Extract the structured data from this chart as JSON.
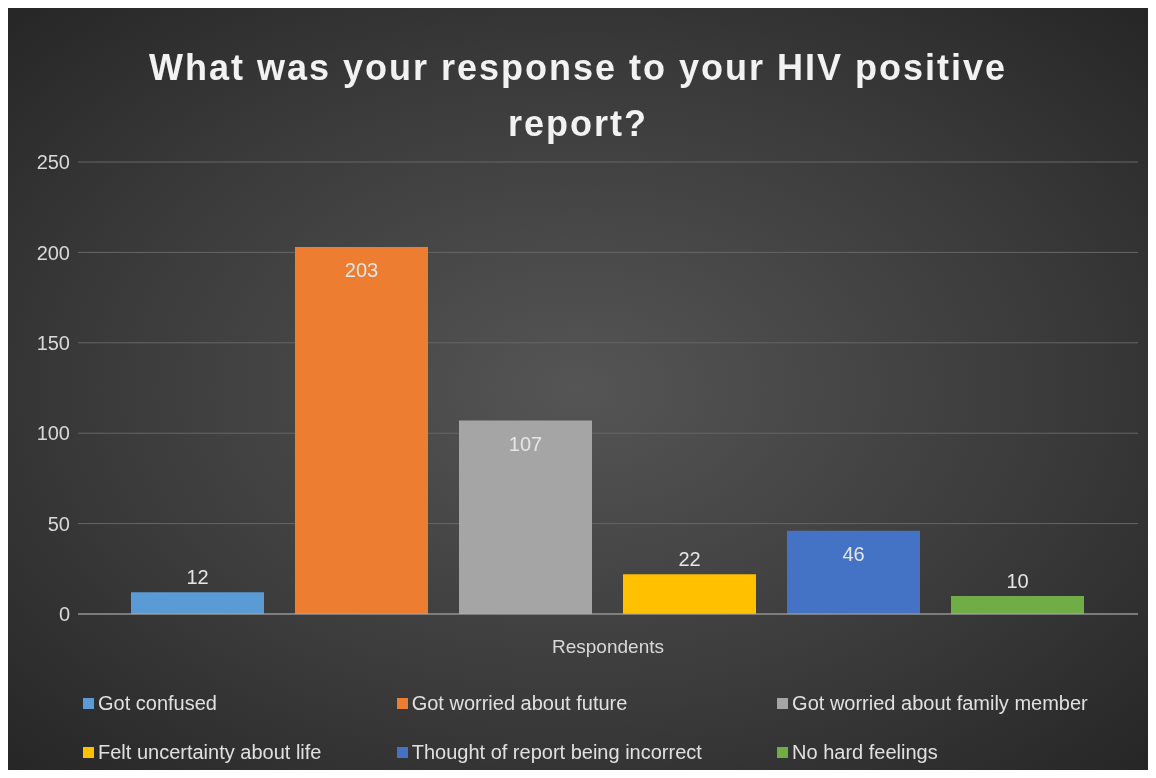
{
  "chart_data": {
    "type": "bar",
    "title": "What was your response to your HIV positive report?",
    "categories": [
      "Respondents"
    ],
    "series": [
      {
        "name": "Got confused",
        "color": "#5b9bd5",
        "values": [
          12
        ]
      },
      {
        "name": "Got worried about future",
        "color": "#ed7d31",
        "values": [
          203
        ]
      },
      {
        "name": "Got worried about family member",
        "color": "#a5a5a5",
        "values": [
          107
        ]
      },
      {
        "name": "Felt uncertainty about life",
        "color": "#ffc000",
        "values": [
          22
        ]
      },
      {
        "name": "Thought of report being incorrect",
        "color": "#4472c4",
        "values": [
          46
        ]
      },
      {
        "name": "No hard feelings",
        "color": "#70ad47",
        "values": [
          10
        ]
      }
    ],
    "ylim": [
      0,
      250
    ],
    "yticks": [
      0,
      50,
      100,
      150,
      200,
      250
    ],
    "grid": "y",
    "legend": "bottom",
    "data_labels": true
  }
}
